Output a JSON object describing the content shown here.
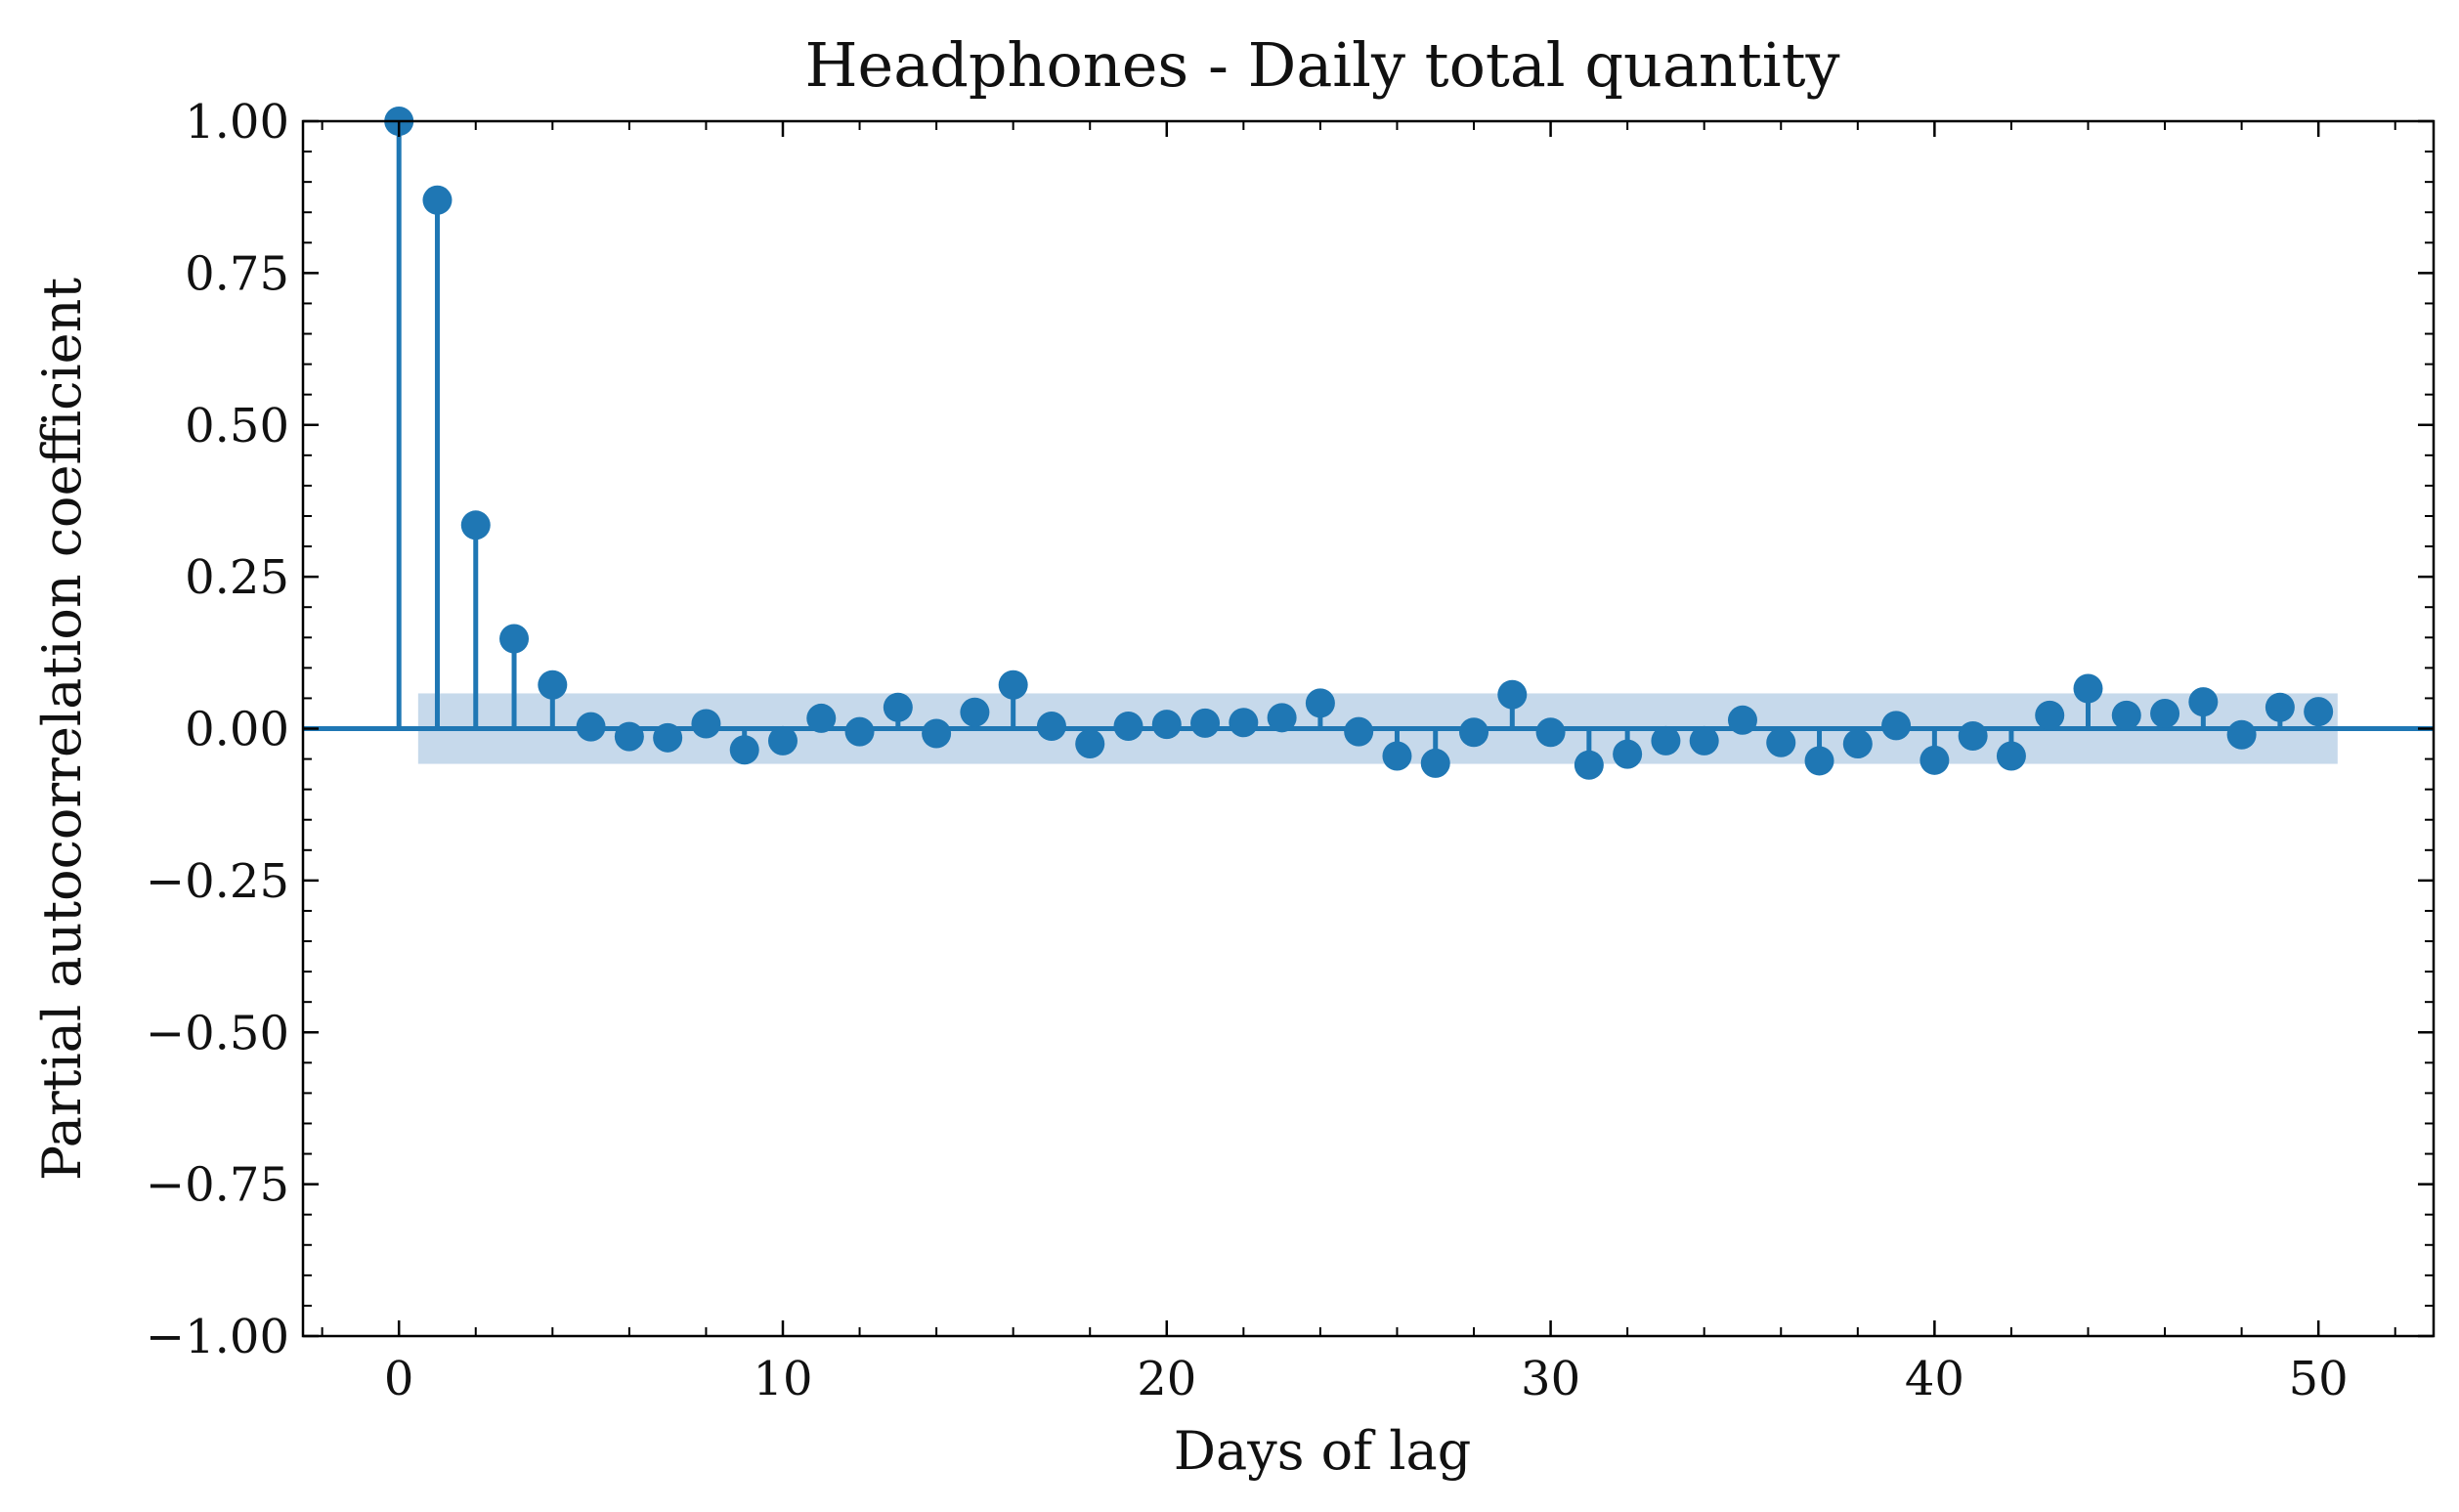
{
  "chart_data": {
    "type": "stem",
    "title": "Headphones - Daily total quantity",
    "xlabel": "Days of lag",
    "ylabel": "Partial autocorrelation coefficient",
    "xlim": [
      -2.5,
      53
    ],
    "ylim": [
      -1.0,
      1.0
    ],
    "x_ticks": [
      0,
      10,
      20,
      30,
      40,
      50
    ],
    "x_tick_labels": [
      "0",
      "10",
      "20",
      "30",
      "40",
      "50"
    ],
    "y_ticks": [
      1.0,
      0.75,
      0.5,
      0.25,
      0.0,
      -0.25,
      -0.5,
      -0.75,
      -1.0
    ],
    "y_tick_labels": [
      "1.00",
      "0.75",
      "0.50",
      "0.25",
      "0.00",
      "−0.25",
      "−0.50",
      "−0.75",
      "−1.00"
    ],
    "grid": false,
    "confidence_band": {
      "x_range": [
        0.5,
        50.5
      ],
      "lower": -0.058,
      "upper": 0.058
    },
    "lags": [
      0,
      1,
      2,
      3,
      4,
      5,
      6,
      7,
      8,
      9,
      10,
      11,
      12,
      13,
      14,
      15,
      16,
      17,
      18,
      19,
      20,
      21,
      22,
      23,
      24,
      25,
      26,
      27,
      28,
      29,
      30,
      31,
      32,
      33,
      34,
      35,
      36,
      37,
      38,
      39,
      40,
      41,
      42,
      43,
      44,
      45,
      46,
      47,
      48,
      49,
      50
    ],
    "values": [
      1.0,
      0.87,
      0.335,
      0.148,
      0.072,
      0.003,
      -0.013,
      -0.015,
      0.008,
      -0.035,
      -0.02,
      0.017,
      -0.005,
      0.035,
      -0.008,
      0.027,
      0.072,
      0.004,
      -0.025,
      0.004,
      0.007,
      0.009,
      0.01,
      0.018,
      0.042,
      -0.005,
      -0.045,
      -0.057,
      -0.006,
      0.056,
      -0.006,
      -0.06,
      -0.042,
      -0.02,
      -0.02,
      0.014,
      -0.023,
      -0.053,
      -0.025,
      0.005,
      -0.052,
      -0.012,
      -0.045,
      0.022,
      0.066,
      0.022,
      0.025,
      0.044,
      -0.01,
      0.035,
      0.028
    ],
    "colors": {
      "series": "#1f77b4",
      "band": "#c6d9eb",
      "axes": "#000000"
    }
  }
}
